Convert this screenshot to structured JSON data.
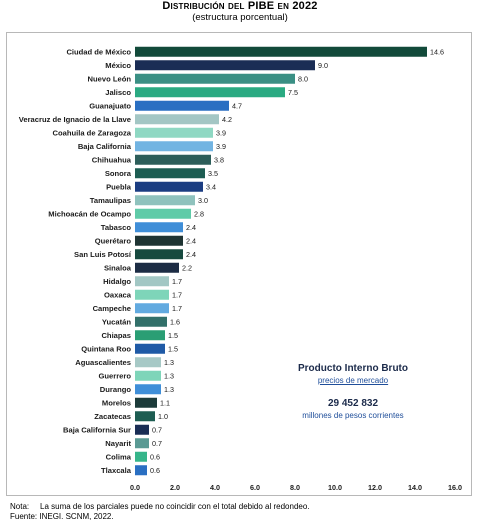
{
  "title": "Distribución del PIBE en 2022",
  "subtitle": "(estructura porcentual)",
  "annotation": {
    "title": "Producto Interno Bruto",
    "subtitle": "precios de mercado",
    "value": "29 452 832",
    "unit": "millones de pesos corrientes"
  },
  "notes": {
    "note_label": "Nota:",
    "note_text": "La suma de los parciales puede no coincidir con el total debido al redondeo.",
    "source": "Fuente: INEGI. SCNM, 2022."
  },
  "chart_data": {
    "type": "bar",
    "orientation": "horizontal",
    "xlim": [
      0,
      16
    ],
    "x_ticks": [
      "0.0",
      "2.0",
      "4.0",
      "6.0",
      "8.0",
      "10.0",
      "12.0",
      "14.0",
      "16.0"
    ],
    "grid": false,
    "categories": [
      "Ciudad de México",
      "México",
      "Nuevo León",
      "Jalisco",
      "Guanajuato",
      "Veracruz de Ignacio de la Llave",
      "Coahuila de Zaragoza",
      "Baja California",
      "Chihuahua",
      "Sonora",
      "Puebla",
      "Tamaulipas",
      "Michoacán de Ocampo",
      "Tabasco",
      "Querétaro",
      "San Luis Potosí",
      "Sinaloa",
      "Hidalgo",
      "Oaxaca",
      "Campeche",
      "Yucatán",
      "Chiapas",
      "Quintana Roo",
      "Aguascalientes",
      "Guerrero",
      "Durango",
      "Morelos",
      "Zacatecas",
      "Baja California Sur",
      "Nayarit",
      "Colima",
      "Tlaxcala"
    ],
    "values": [
      14.6,
      9.0,
      8.0,
      7.5,
      4.7,
      4.2,
      3.9,
      3.9,
      3.8,
      3.5,
      3.4,
      3.0,
      2.8,
      2.4,
      2.4,
      2.4,
      2.2,
      1.7,
      1.7,
      1.7,
      1.6,
      1.5,
      1.5,
      1.3,
      1.3,
      1.3,
      1.1,
      1.0,
      0.7,
      0.7,
      0.6,
      0.6
    ],
    "value_labels": [
      "14.6",
      "9.0",
      "8.0",
      "7.5",
      "4.7",
      "4.2",
      "3.9",
      "3.9",
      "3.8",
      "3.5",
      "3.4",
      "3.0",
      "2.8",
      "2.4",
      "2.4",
      "2.4",
      "2.2",
      "1.7",
      "1.7",
      "1.7",
      "1.6",
      "1.5",
      "1.5",
      "1.3",
      "1.3",
      "1.3",
      "1.1",
      "1.0",
      "0.7",
      "0.7",
      "0.6",
      "0.6"
    ],
    "colors": [
      "#124a3a",
      "#1a2d55",
      "#3a8f84",
      "#2aaa82",
      "#2a6fc2",
      "#a3c6c4",
      "#8fd8c3",
      "#72b4e2",
      "#2d5e5a",
      "#1d5d52",
      "#1b3d82",
      "#8fc2bd",
      "#5fcba8",
      "#3f8ed8",
      "#1f3433",
      "#174a3f",
      "#1c2c44",
      "#a2c7c4",
      "#7ed5b9",
      "#62aae0",
      "#32706a",
      "#2a9e74",
      "#1f5aa6",
      "#a7c9c6",
      "#7ed5b9",
      "#3f8ed8",
      "#1c3b3a",
      "#1d5d52",
      "#1a2d55",
      "#5a9a94",
      "#36b58a",
      "#2a6fc2"
    ]
  }
}
